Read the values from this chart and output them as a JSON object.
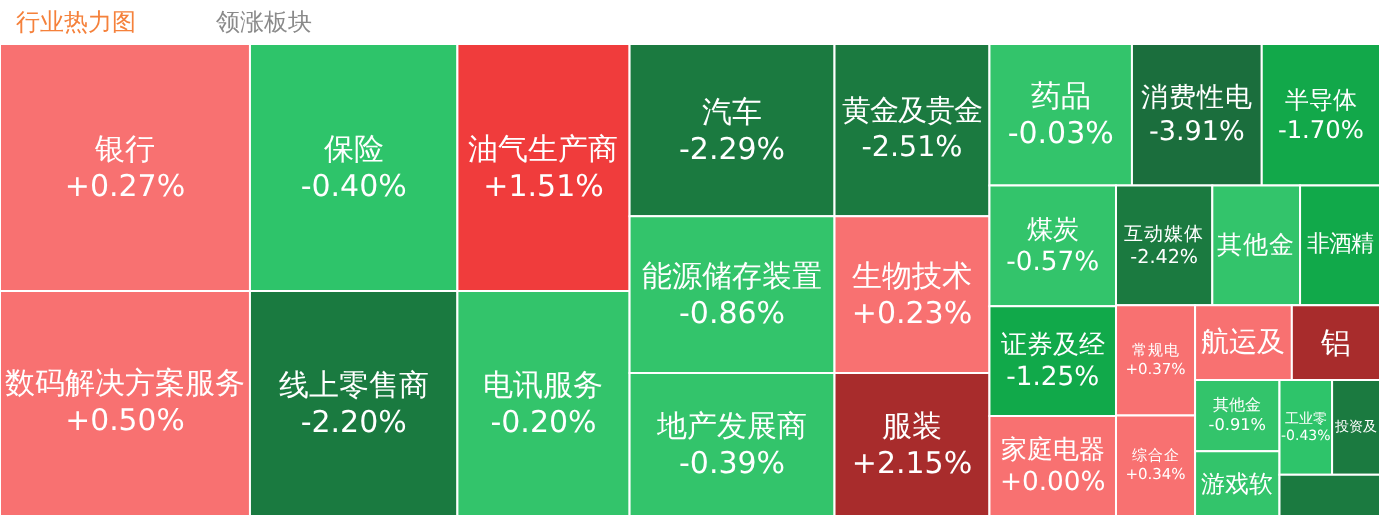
{
  "chart_data": {
    "type": "other",
    "title": "行业热力图",
    "subtitle": "领涨板块",
    "categories": [
      "银行",
      "数码解决方案服务",
      "保险",
      "线上零售商",
      "油气生产商",
      "电讯服务",
      "汽车",
      "能源储存装置",
      "地产发展商",
      "黄金及贵金",
      "生物技术",
      "服装",
      "药品",
      "消费性电",
      "半导体",
      "煤炭",
      "证券及经",
      "家庭电器",
      "互动媒体",
      "其他金",
      "非酒精",
      "常规电",
      "综合企",
      "航运及",
      "铝",
      "其他金",
      "游戏软",
      "工业零",
      "投资及",
      null
    ],
    "values": [
      0.27,
      0.5,
      -0.4,
      -2.2,
      1.51,
      -0.2,
      -2.29,
      -0.86,
      -0.39,
      -2.51,
      0.23,
      2.15,
      -0.03,
      -3.91,
      -1.7,
      -0.57,
      -1.25,
      0.0,
      -2.42,
      null,
      null,
      0.37,
      0.34,
      null,
      null,
      -0.91,
      null,
      -0.43,
      null,
      null
    ],
    "value_labels": [
      "+0.27%",
      "+0.50%",
      "-0.40%",
      "-2.20%",
      "+1.51%",
      "-0.20%",
      "-2.29%",
      "-0.86%",
      "-0.39%",
      "-2.51%",
      "+0.23%",
      "+2.15%",
      "-0.03%",
      "-3.91%",
      "-1.70%",
      "-0.57%",
      "-1.25%",
      "+0.00%",
      "-2.42%",
      null,
      null,
      "+0.37%",
      "+0.34%",
      null,
      null,
      "-0.91%",
      null,
      "-0.43%",
      null,
      null
    ],
    "colors": [
      "#f87171",
      "#f87171",
      "#2ec46a",
      "#1a7a40",
      "#f03c3c",
      "#33c46b",
      "#1b7a40",
      "#33c46b",
      "#33c46b",
      "#1b7a40",
      "#f87171",
      "#a82c2c",
      "#33c46b",
      "#1b6e3d",
      "#12a84a",
      "#33c46b",
      "#11a94a",
      "#f87171",
      "#1b7a40",
      "#33c46b",
      "#11a94a",
      "#f87171",
      "#f87171",
      "#f87171",
      "#a82c2c",
      "#33c46b",
      "#33c46b",
      "#2ec46a",
      "#1b7a40",
      "#1b7a40"
    ]
  }
}
